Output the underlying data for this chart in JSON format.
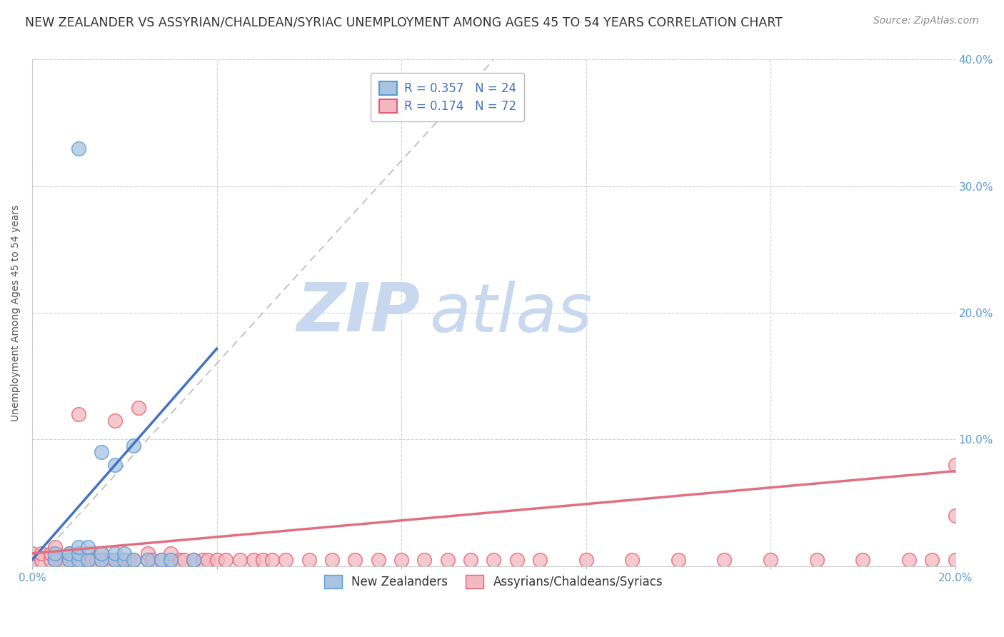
{
  "title": "NEW ZEALANDER VS ASSYRIAN/CHALDEAN/SYRIAC UNEMPLOYMENT AMONG AGES 45 TO 54 YEARS CORRELATION CHART",
  "source": "Source: ZipAtlas.com",
  "ylabel_label": "Unemployment Among Ages 45 to 54 years",
  "xlim": [
    0.0,
    0.2
  ],
  "ylim": [
    0.0,
    0.4
  ],
  "ytick_positions": [
    0.0,
    0.1,
    0.2,
    0.3,
    0.4
  ],
  "ytick_labels": [
    "",
    "10.0%",
    "20.0%",
    "30.0%",
    "40.0%"
  ],
  "xtick_positions": [
    0.0,
    0.04,
    0.08,
    0.12,
    0.16,
    0.2
  ],
  "xtick_labels": [
    "0.0%",
    "",
    "",
    "",
    "",
    "20.0%"
  ],
  "nz_R": 0.357,
  "nz_N": 24,
  "asy_R": 0.174,
  "asy_N": 72,
  "nz_color": "#a8c4e0",
  "nz_edge_color": "#5b9bd5",
  "asy_color": "#f4b8c1",
  "asy_edge_color": "#e06070",
  "nz_line_color": "#4472c4",
  "asy_line_color": "#e07080",
  "ref_line_color": "#b0b0b0",
  "legend_label_nz": "New Zealanders",
  "legend_label_asy": "Assyrians/Chaldeans/Syriacs",
  "nz_x": [
    0.005,
    0.005,
    0.008,
    0.008,
    0.01,
    0.01,
    0.01,
    0.012,
    0.012,
    0.015,
    0.015,
    0.015,
    0.018,
    0.018,
    0.018,
    0.02,
    0.02,
    0.022,
    0.022,
    0.025,
    0.028,
    0.03,
    0.035,
    0.01
  ],
  "nz_y": [
    0.005,
    0.01,
    0.005,
    0.01,
    0.005,
    0.01,
    0.015,
    0.005,
    0.015,
    0.005,
    0.01,
    0.09,
    0.005,
    0.01,
    0.08,
    0.005,
    0.01,
    0.005,
    0.095,
    0.005,
    0.005,
    0.005,
    0.005,
    0.33
  ],
  "asy_x": [
    0.0,
    0.0,
    0.002,
    0.002,
    0.004,
    0.004,
    0.005,
    0.005,
    0.006,
    0.007,
    0.008,
    0.008,
    0.009,
    0.01,
    0.01,
    0.01,
    0.012,
    0.012,
    0.013,
    0.014,
    0.015,
    0.015,
    0.016,
    0.017,
    0.018,
    0.018,
    0.019,
    0.02,
    0.021,
    0.022,
    0.023,
    0.025,
    0.025,
    0.026,
    0.028,
    0.03,
    0.03,
    0.032,
    0.033,
    0.035,
    0.037,
    0.038,
    0.04,
    0.042,
    0.045,
    0.048,
    0.05,
    0.052,
    0.055,
    0.06,
    0.065,
    0.07,
    0.075,
    0.08,
    0.085,
    0.09,
    0.095,
    0.1,
    0.105,
    0.11,
    0.12,
    0.13,
    0.14,
    0.15,
    0.16,
    0.17,
    0.18,
    0.19,
    0.195,
    0.2,
    0.2,
    0.2
  ],
  "asy_y": [
    0.005,
    0.01,
    0.005,
    0.01,
    0.005,
    0.01,
    0.005,
    0.015,
    0.005,
    0.005,
    0.005,
    0.01,
    0.005,
    0.005,
    0.01,
    0.12,
    0.005,
    0.01,
    0.005,
    0.005,
    0.005,
    0.01,
    0.005,
    0.005,
    0.005,
    0.115,
    0.005,
    0.005,
    0.005,
    0.005,
    0.125,
    0.005,
    0.01,
    0.005,
    0.005,
    0.005,
    0.01,
    0.005,
    0.005,
    0.005,
    0.005,
    0.005,
    0.005,
    0.005,
    0.005,
    0.005,
    0.005,
    0.005,
    0.005,
    0.005,
    0.005,
    0.005,
    0.005,
    0.005,
    0.005,
    0.005,
    0.005,
    0.005,
    0.005,
    0.005,
    0.005,
    0.005,
    0.005,
    0.005,
    0.005,
    0.005,
    0.005,
    0.005,
    0.005,
    0.005,
    0.04,
    0.08
  ],
  "background_color": "#ffffff",
  "grid_color": "#cccccc",
  "watermark_zip": "ZIP",
  "watermark_atlas": "atlas",
  "watermark_color_zip": "#c8d8ee",
  "watermark_color_atlas": "#c8d8ee",
  "title_fontsize": 12.5,
  "axis_label_fontsize": 10,
  "tick_fontsize": 11,
  "legend_fontsize": 12,
  "ref_line_slope": 4.0
}
